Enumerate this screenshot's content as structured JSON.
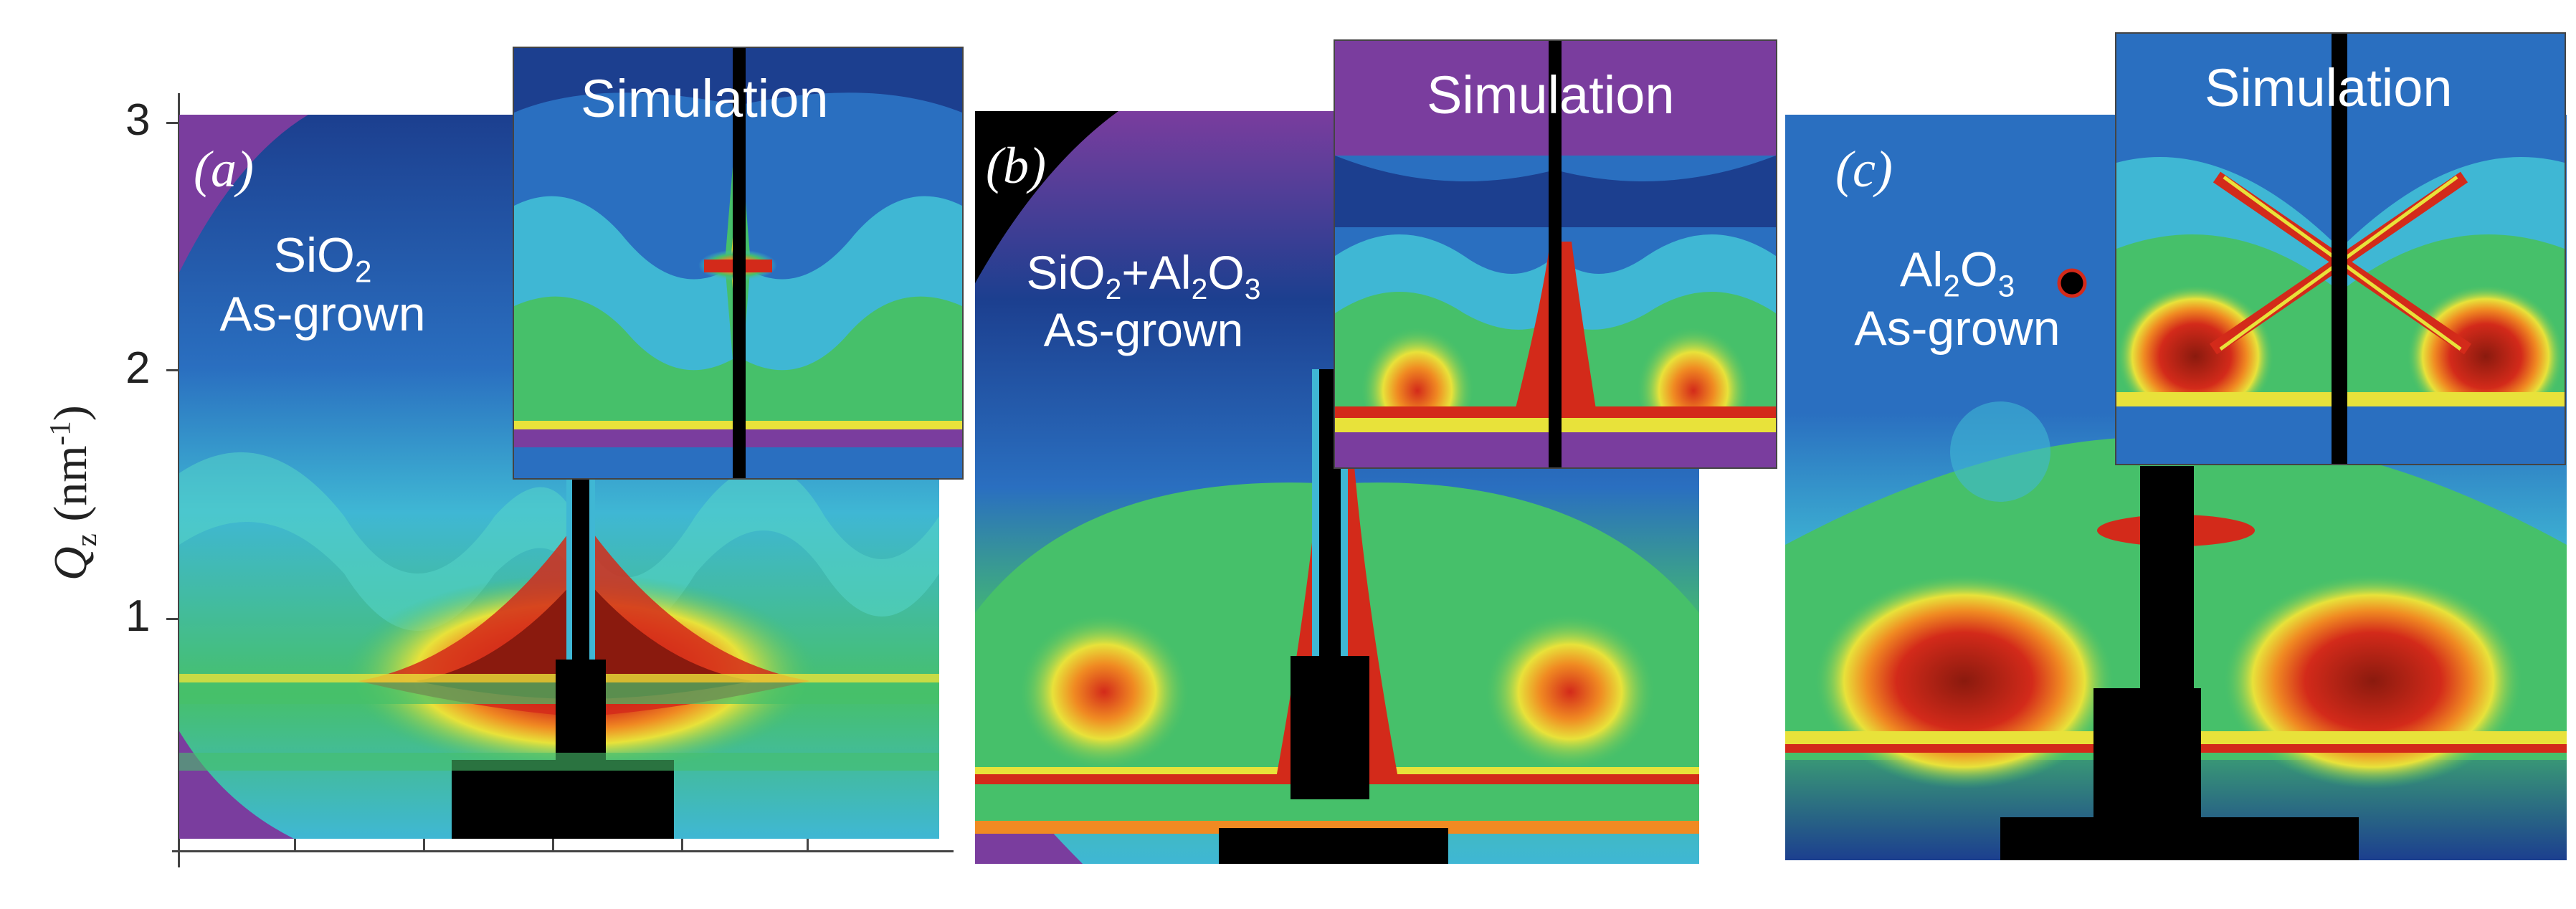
{
  "figure": {
    "y_axis": {
      "label_main": "Q",
      "label_sub": "z",
      "label_unit_pre": " (nm",
      "label_unit_sup": "-1",
      "label_unit_post": ")",
      "ticks": [
        "1",
        "2",
        "3"
      ]
    },
    "panels": [
      {
        "letter": "(a)",
        "sample_line1_base": "SiO",
        "sample_line1_sub": "2",
        "sample_line2": "As-grown",
        "inset_title": "Simulation"
      },
      {
        "letter": "(b)",
        "sample_line1_a": "SiO",
        "sample_line1_a_sub": "2",
        "sample_line1_b": "+Al",
        "sample_line1_b_sub": "2",
        "sample_line1_c": "O",
        "sample_line1_c_sub": "3",
        "sample_line2": "As-grown",
        "inset_title": "Simulation"
      },
      {
        "letter": "(c)",
        "sample_line1_a": "Al",
        "sample_line1_a_sub": "2",
        "sample_line1_b": "O",
        "sample_line1_b_sub": "3",
        "sample_line2": "As-grown",
        "inset_title": "Simulation"
      }
    ],
    "colormap": {
      "purple": "#7a3d9e",
      "dark_blue": "#1c3f8f",
      "blue": "#2a6fc0",
      "cyan": "#3fb7d4",
      "green": "#46c06a",
      "yellow": "#e8e23a",
      "orange": "#f08a22",
      "red": "#d32a1a",
      "dark_red": "#8a1a0e",
      "black": "#000000"
    }
  }
}
